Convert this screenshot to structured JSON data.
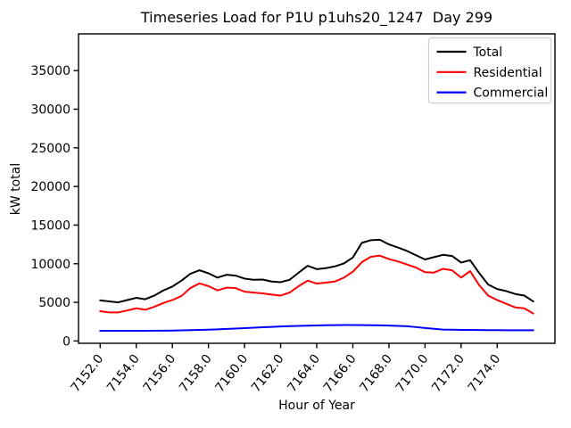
{
  "window": {
    "background": "#ffffff"
  },
  "chart_data": {
    "type": "line",
    "title": "Timeseries Load for P1U p1uhs20_1247  Day 299",
    "xlabel": "Hour of Year",
    "ylabel": "kW total",
    "xlim": [
      7150.8,
      7177.2
    ],
    "ylim": [
      -300,
      39750
    ],
    "grid": false,
    "legend_position": "upper right",
    "legend_border_color": "#cccccc",
    "xticks": [
      7152,
      7154,
      7156,
      7158,
      7160,
      7162,
      7164,
      7166,
      7168,
      7170,
      7172,
      7174
    ],
    "xtick_labels": [
      "7152.0",
      "7154.0",
      "7156.0",
      "7158.0",
      "7160.0",
      "7162.0",
      "7164.0",
      "7166.0",
      "7168.0",
      "7170.0",
      "7172.0",
      "7174.0"
    ],
    "xtick_rotation_deg": 52,
    "yticks": [
      0,
      5000,
      10000,
      15000,
      20000,
      25000,
      30000,
      35000
    ],
    "ytick_labels": [
      "0",
      "5000",
      "10000",
      "15000",
      "20000",
      "25000",
      "30000",
      "35000"
    ],
    "x": [
      7152.0,
      7152.5,
      7153.0,
      7153.5,
      7154.0,
      7154.5,
      7155.0,
      7155.5,
      7156.0,
      7156.5,
      7157.0,
      7157.5,
      7158.0,
      7158.5,
      7159.0,
      7159.5,
      7160.0,
      7160.5,
      7161.0,
      7161.5,
      7162.0,
      7162.5,
      7163.0,
      7163.5,
      7164.0,
      7164.5,
      7165.0,
      7165.5,
      7166.0,
      7166.5,
      7167.0,
      7167.5,
      7168.0,
      7168.5,
      7169.0,
      7169.5,
      7170.0,
      7170.5,
      7171.0,
      7171.5,
      7172.0,
      7172.5,
      7173.0,
      7173.5,
      7174.0,
      7174.5,
      7175.0,
      7175.5,
      7176.0
    ],
    "series": [
      {
        "name": "Total",
        "color": "#000000",
        "values": [
          5250,
          5120,
          5000,
          5300,
          5580,
          5400,
          5880,
          6540,
          7040,
          7800,
          8700,
          9150,
          8760,
          8200,
          8570,
          8460,
          8070,
          7920,
          7950,
          7690,
          7610,
          7920,
          8850,
          9730,
          9300,
          9420,
          9650,
          10030,
          10800,
          12700,
          13050,
          13100,
          12500,
          12100,
          11650,
          11100,
          10550,
          10850,
          11150,
          11000,
          10150,
          10450,
          8800,
          7300,
          6730,
          6460,
          6080,
          5880,
          5120
        ]
      },
      {
        "name": "Residential",
        "color": "#ff0000",
        "values": [
          3850,
          3700,
          3700,
          3950,
          4230,
          4040,
          4430,
          4920,
          5300,
          5810,
          6850,
          7450,
          7100,
          6550,
          6900,
          6850,
          6380,
          6270,
          6160,
          6000,
          5880,
          6270,
          7100,
          7810,
          7430,
          7550,
          7690,
          8190,
          8960,
          10200,
          10900,
          11050,
          10600,
          10300,
          9900,
          9500,
          8900,
          8850,
          9340,
          9150,
          8200,
          9040,
          7230,
          5880,
          5300,
          4810,
          4350,
          4230,
          3550
        ]
      },
      {
        "name": "Commercial",
        "color": "#0000ff",
        "values": [
          1320,
          1318,
          1316,
          1315,
          1316,
          1320,
          1326,
          1336,
          1350,
          1370,
          1396,
          1428,
          1466,
          1510,
          1558,
          1610,
          1664,
          1718,
          1772,
          1824,
          1872,
          1916,
          1954,
          1986,
          2012,
          2034,
          2050,
          2060,
          2062,
          2056,
          2042,
          2020,
          1990,
          1950,
          1905,
          1800,
          1680,
          1570,
          1480,
          1455,
          1438,
          1425,
          1415,
          1406,
          1400,
          1394,
          1390,
          1386,
          1382
        ]
      }
    ]
  }
}
